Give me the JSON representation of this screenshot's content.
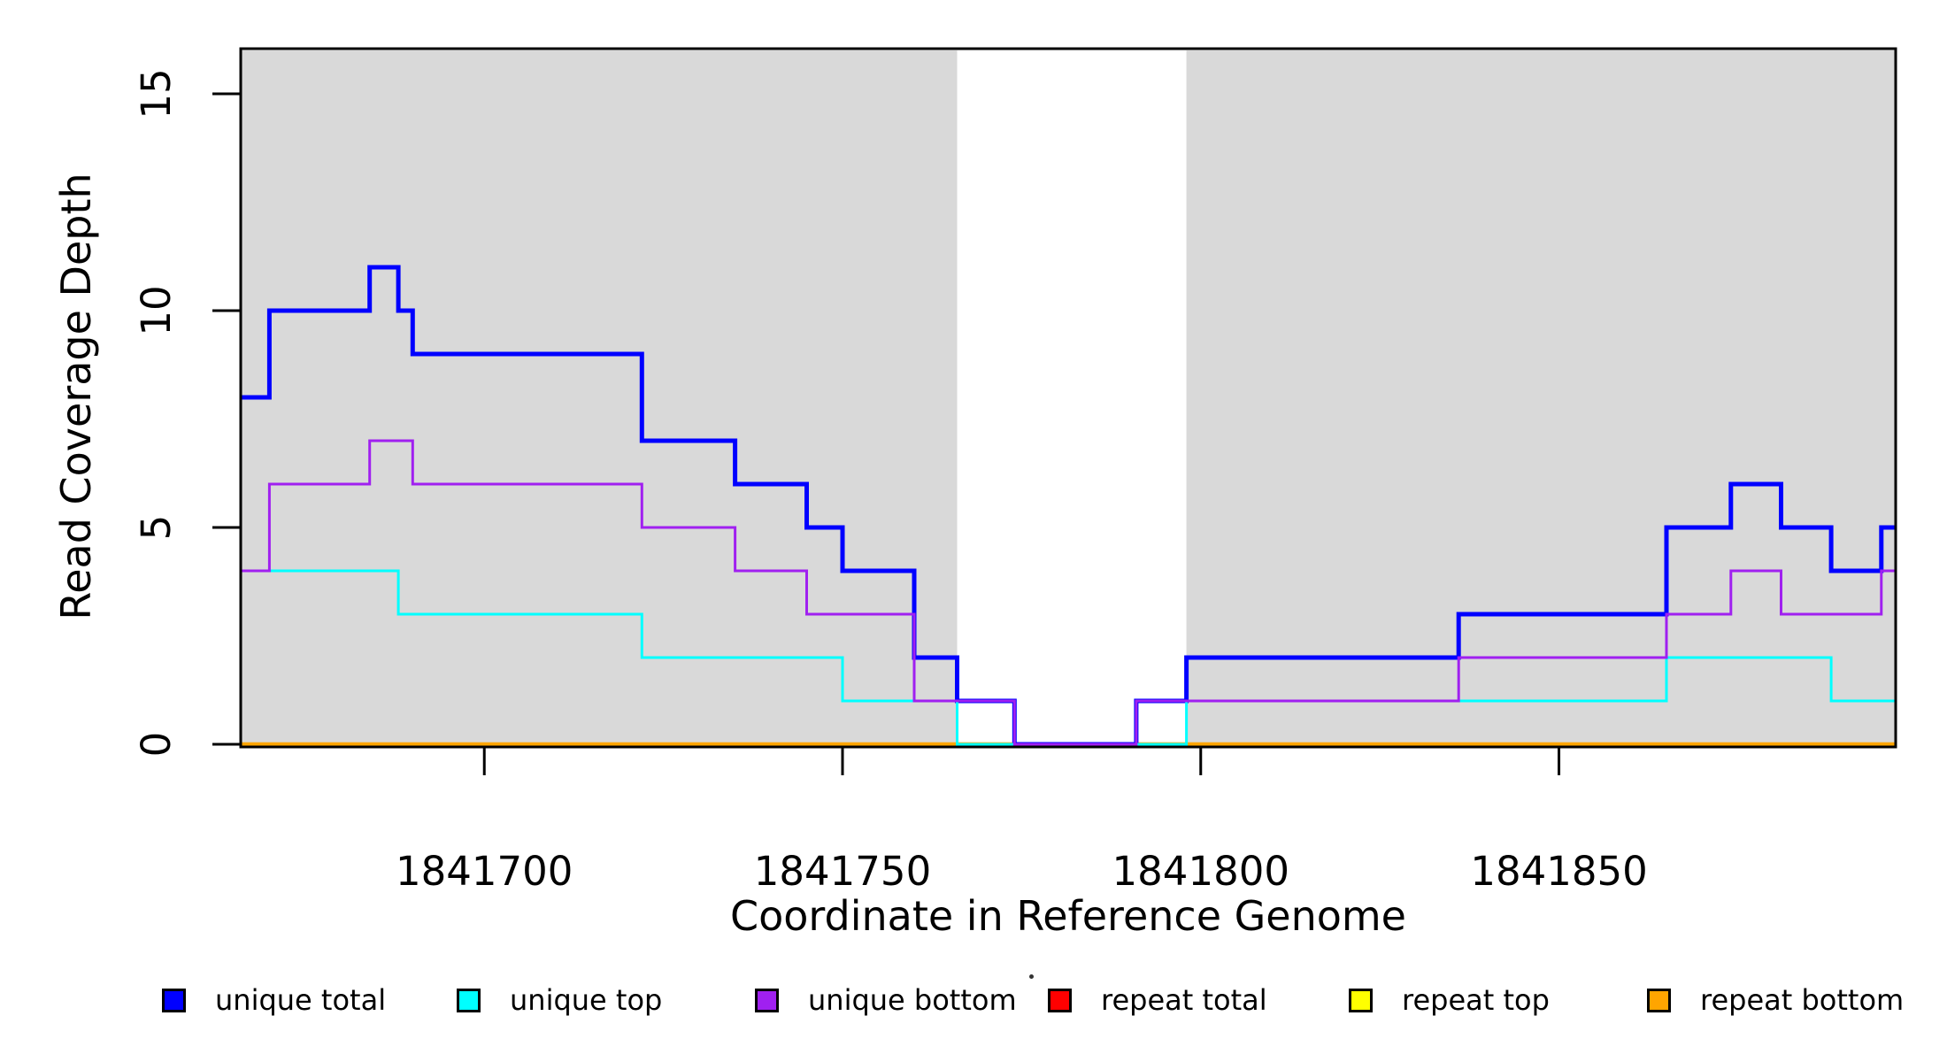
{
  "figure": {
    "xlabel": "Coordinate in Reference Genome",
    "ylabel": "Read Coverage Depth"
  },
  "legend": {
    "items": [
      {
        "label": "unique total",
        "color": "#0000FF"
      },
      {
        "label": "unique top",
        "color": "#00FFFF"
      },
      {
        "label": "unique bottom",
        "color": "#A020F0"
      },
      {
        "label": "repeat total",
        "color": "#FF0000"
      },
      {
        "label": "repeat top",
        "color": "#FFFF00"
      },
      {
        "label": "repeat bottom",
        "color": "#FFA500"
      }
    ],
    "artifact_dot": "."
  },
  "chart_data": {
    "type": "line",
    "subtype": "step-after",
    "title": "",
    "xlabel": "Coordinate in Reference Genome",
    "ylabel": "Read Coverage Depth",
    "xlim": [
      1841666,
      1841897
    ],
    "ylim": [
      0,
      16
    ],
    "grid": false,
    "legend_position": "bottom",
    "x_ticks": [
      1841700,
      1841750,
      1841800,
      1841850
    ],
    "x_tick_labels": [
      "1841700",
      "1841750",
      "1841800",
      "1841850"
    ],
    "y_ticks": [
      0,
      5,
      10,
      15
    ],
    "y_tick_labels": [
      "0",
      "5",
      "10",
      "15"
    ],
    "background_regions": [
      {
        "name": "shaded-left",
        "x0": 1841666,
        "x1": 1841766,
        "color": "#D9D9D9"
      },
      {
        "name": "shaded-right",
        "x0": 1841798,
        "x1": 1841897,
        "color": "#D9D9D9"
      }
    ],
    "series": [
      {
        "name": "repeat total",
        "color": "#FF0000",
        "width": 4,
        "points": [
          [
            1841666,
            0
          ]
        ]
      },
      {
        "name": "repeat top",
        "color": "#FFFF00",
        "width": 4,
        "points": [
          [
            1841666,
            0
          ]
        ]
      },
      {
        "name": "repeat bottom",
        "color": "#FFA500",
        "width": 4.5,
        "points": [
          [
            1841666,
            0
          ]
        ]
      },
      {
        "name": "unique total",
        "color": "#0000FF",
        "width": 5,
        "points": [
          [
            1841666,
            8
          ],
          [
            1841670,
            10
          ],
          [
            1841684,
            11
          ],
          [
            1841688,
            10
          ],
          [
            1841690,
            9
          ],
          [
            1841722,
            7
          ],
          [
            1841735,
            6
          ],
          [
            1841745,
            5
          ],
          [
            1841750,
            4
          ],
          [
            1841760,
            2
          ],
          [
            1841766,
            1
          ],
          [
            1841774,
            0
          ],
          [
            1841791,
            1
          ],
          [
            1841798,
            2
          ],
          [
            1841836,
            3
          ],
          [
            1841865,
            5
          ],
          [
            1841874,
            6
          ],
          [
            1841881,
            5
          ],
          [
            1841888,
            4
          ],
          [
            1841895,
            5
          ]
        ]
      },
      {
        "name": "unique top",
        "color": "#00FFFF",
        "width": 3,
        "points": [
          [
            1841666,
            4
          ],
          [
            1841688,
            3
          ],
          [
            1841722,
            2
          ],
          [
            1841750,
            1
          ],
          [
            1841766,
            0
          ],
          [
            1841798,
            1
          ],
          [
            1841865,
            2
          ],
          [
            1841888,
            1
          ]
        ]
      },
      {
        "name": "unique bottom",
        "color": "#A020F0",
        "width": 3,
        "points": [
          [
            1841666,
            4
          ],
          [
            1841670,
            6
          ],
          [
            1841684,
            7
          ],
          [
            1841690,
            6
          ],
          [
            1841722,
            5
          ],
          [
            1841735,
            4
          ],
          [
            1841745,
            3
          ],
          [
            1841760,
            1
          ],
          [
            1841774,
            0
          ],
          [
            1841791,
            1
          ],
          [
            1841836,
            2
          ],
          [
            1841865,
            3
          ],
          [
            1841874,
            4
          ],
          [
            1841881,
            3
          ],
          [
            1841895,
            4
          ]
        ]
      }
    ]
  }
}
